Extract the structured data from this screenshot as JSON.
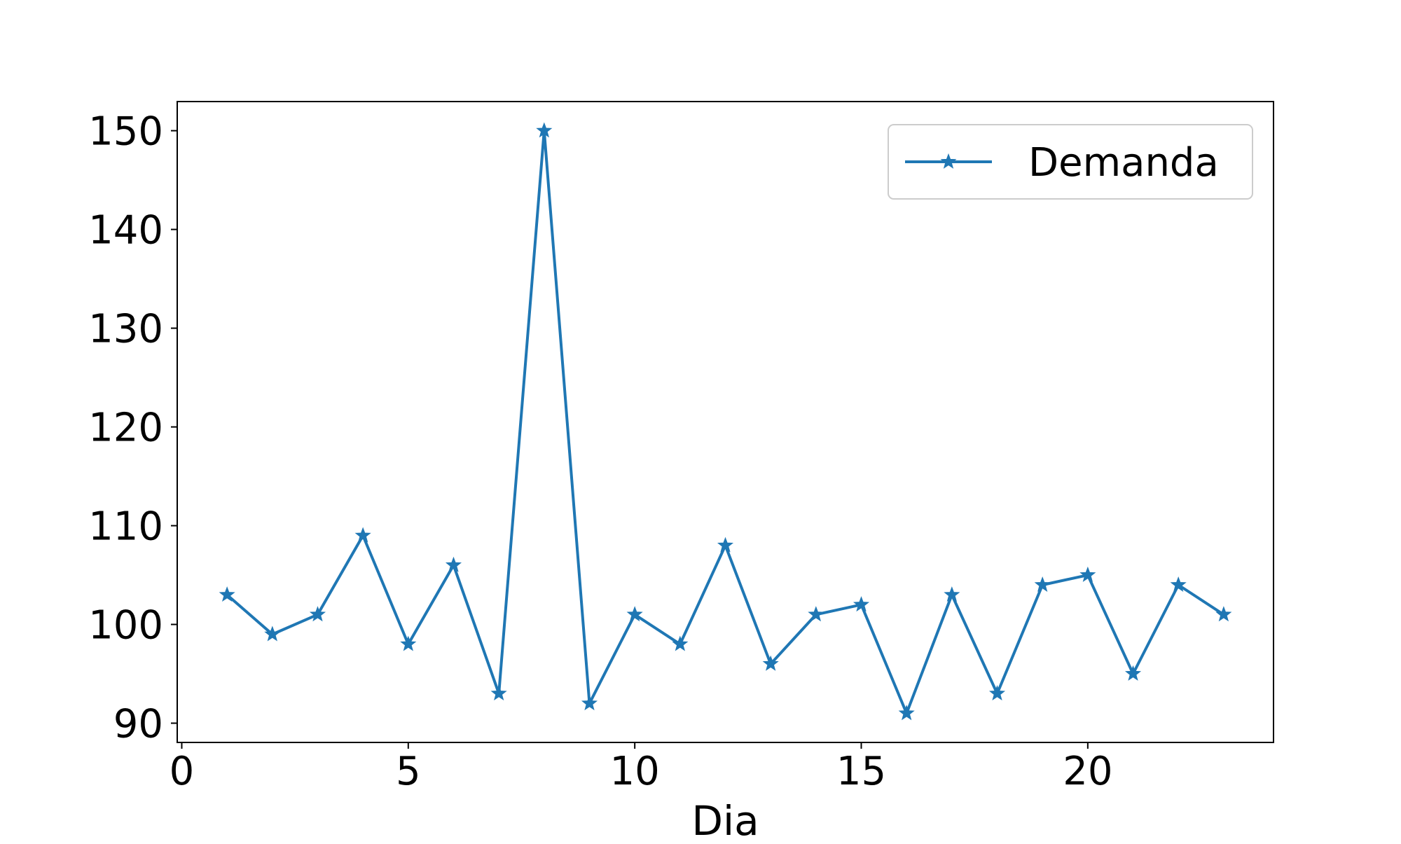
{
  "chart_data": {
    "type": "line",
    "xlabel": "Dia",
    "ylabel": "",
    "xlim": [
      -0.1,
      24.1
    ],
    "ylim": [
      88.05,
      152.95
    ],
    "xticks": [
      0,
      5,
      10,
      15,
      20
    ],
    "yticks": [
      90,
      100,
      110,
      120,
      130,
      140,
      150
    ],
    "legend_position": "top-right",
    "grid": false,
    "series": [
      {
        "name": "Demanda",
        "color": "#1f77b4",
        "marker": "star",
        "x": [
          1,
          2,
          3,
          4,
          5,
          6,
          7,
          8,
          9,
          10,
          11,
          12,
          13,
          14,
          15,
          16,
          17,
          18,
          19,
          20,
          21,
          22,
          23
        ],
        "values": [
          103,
          99,
          101,
          109,
          98,
          106,
          93,
          150,
          92,
          101,
          98,
          108,
          96,
          101,
          102,
          91,
          103,
          93,
          104,
          105,
          95,
          104,
          101
        ]
      }
    ]
  }
}
